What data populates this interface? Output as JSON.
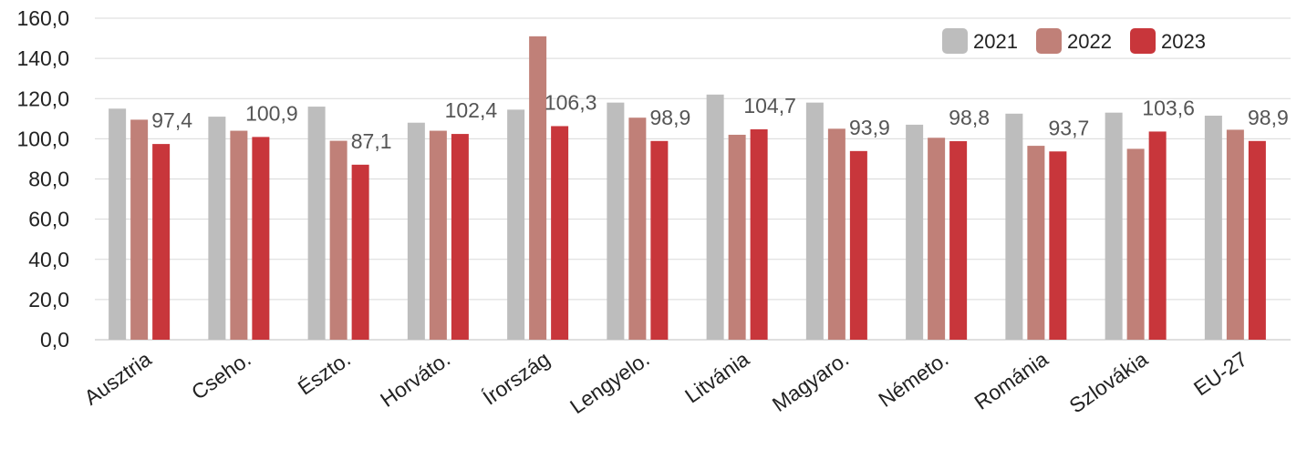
{
  "chart_data": {
    "type": "bar",
    "categories": [
      "Ausztria",
      "Cseho.",
      "Észto.",
      "Horváto.",
      "Írország",
      "Lengyelo.",
      "Litvánia",
      "Magyaro.",
      "Németo.",
      "Románia",
      "Szlovákia",
      "EU-27"
    ],
    "series": [
      {
        "name": "2021",
        "color": "#bdbdbd",
        "values": [
          115.0,
          111.0,
          116.0,
          108.0,
          114.5,
          118.0,
          122.0,
          118.0,
          107.0,
          112.5,
          113.0,
          111.5
        ]
      },
      {
        "name": "2022",
        "color": "#c08078",
        "values": [
          109.5,
          104.0,
          99.0,
          104.0,
          151.0,
          110.5,
          102.0,
          105.0,
          100.5,
          96.5,
          95.0,
          104.5
        ]
      },
      {
        "name": "2023",
        "color": "#c8363b",
        "values": [
          97.4,
          100.9,
          87.1,
          102.4,
          106.3,
          98.9,
          104.7,
          93.9,
          98.8,
          93.7,
          103.6,
          98.9
        ]
      }
    ],
    "data_labels": [
      "97,4",
      "100,9",
      "87,1",
      "102,4",
      "106,3",
      "98,9",
      "104,7",
      "93,9",
      "98,8",
      "93,7",
      "103,6",
      "98,9"
    ],
    "y_ticks": [
      "0,0",
      "20,0",
      "40,0",
      "60,0",
      "80,0",
      "100,0",
      "120,0",
      "140,0",
      "160,0"
    ],
    "ylim": [
      0,
      160
    ],
    "grid": true,
    "legend": "top-right",
    "title": "",
    "xlabel": "",
    "ylabel": ""
  }
}
